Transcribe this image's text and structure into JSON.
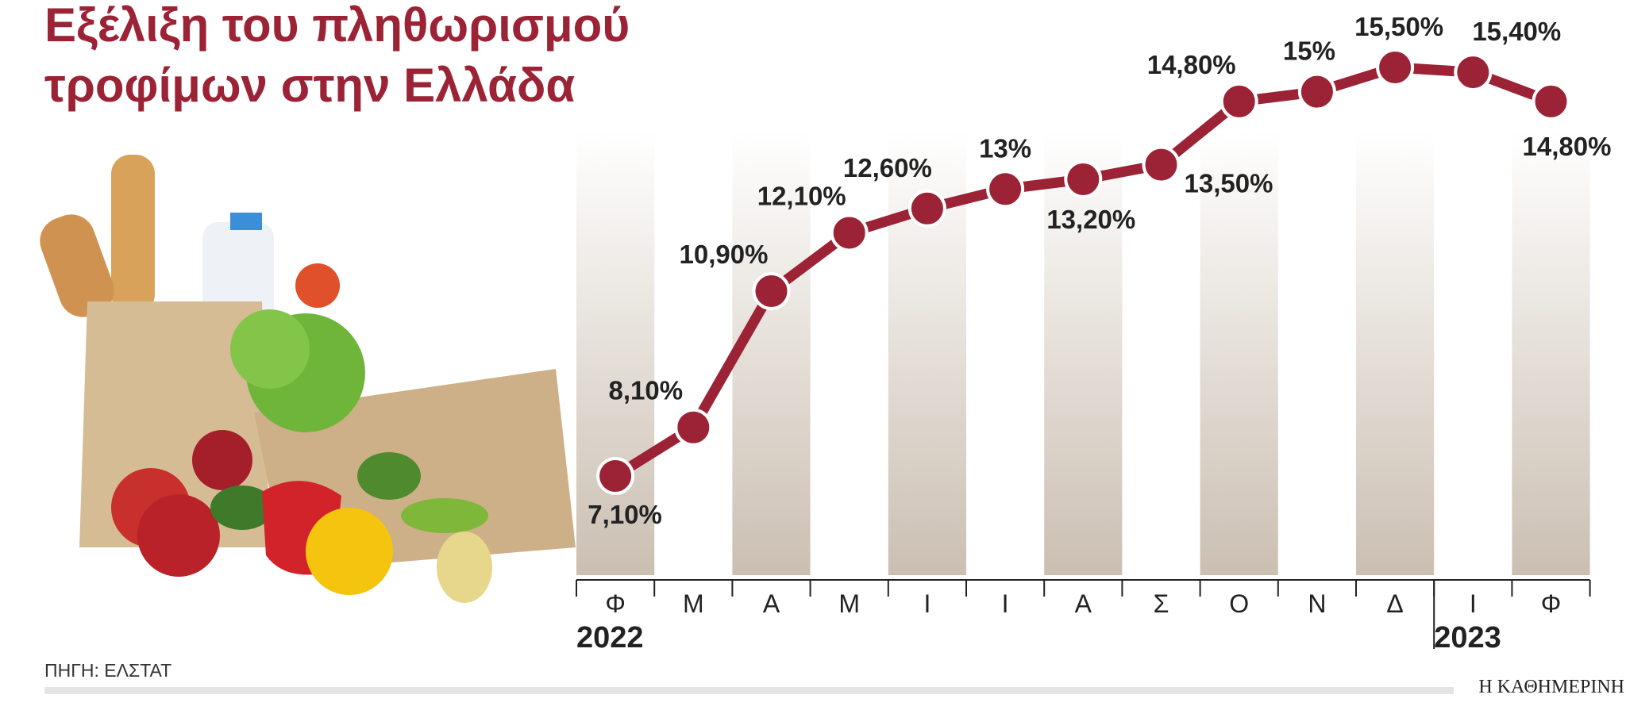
{
  "chart_data": {
    "type": "line",
    "title": [
      "Εξέλιξη του πληθωρισμού",
      "τροφίμων στην Ελλάδα"
    ],
    "categories": [
      "Φ",
      "Μ",
      "Α",
      "Μ",
      "Ι",
      "Ι",
      "Α",
      "Σ",
      "Ο",
      "Ν",
      "Δ",
      "Ι",
      "Φ"
    ],
    "years": [
      "2022",
      null,
      null,
      null,
      null,
      null,
      null,
      null,
      null,
      null,
      null,
      "2023",
      null
    ],
    "values": [
      7.1,
      8.1,
      10.9,
      12.1,
      12.6,
      13,
      13.2,
      13.5,
      14.8,
      15,
      15.5,
      15.4,
      14.8
    ],
    "value_labels": [
      "7,10%",
      "8,10%",
      "10,90%",
      "12,10%",
      "12,60%",
      "13%",
      "13,20%",
      "13,50%",
      "14,80%",
      "15%",
      "15,50%",
      "15,40%",
      "14,80%"
    ],
    "color": "#9b2335",
    "source": "ΠΗΓΗ: ΕΛΣΤΑΤ",
    "publisher": "Η ΚΑΘΗΜΕΡΙΝΗ"
  }
}
